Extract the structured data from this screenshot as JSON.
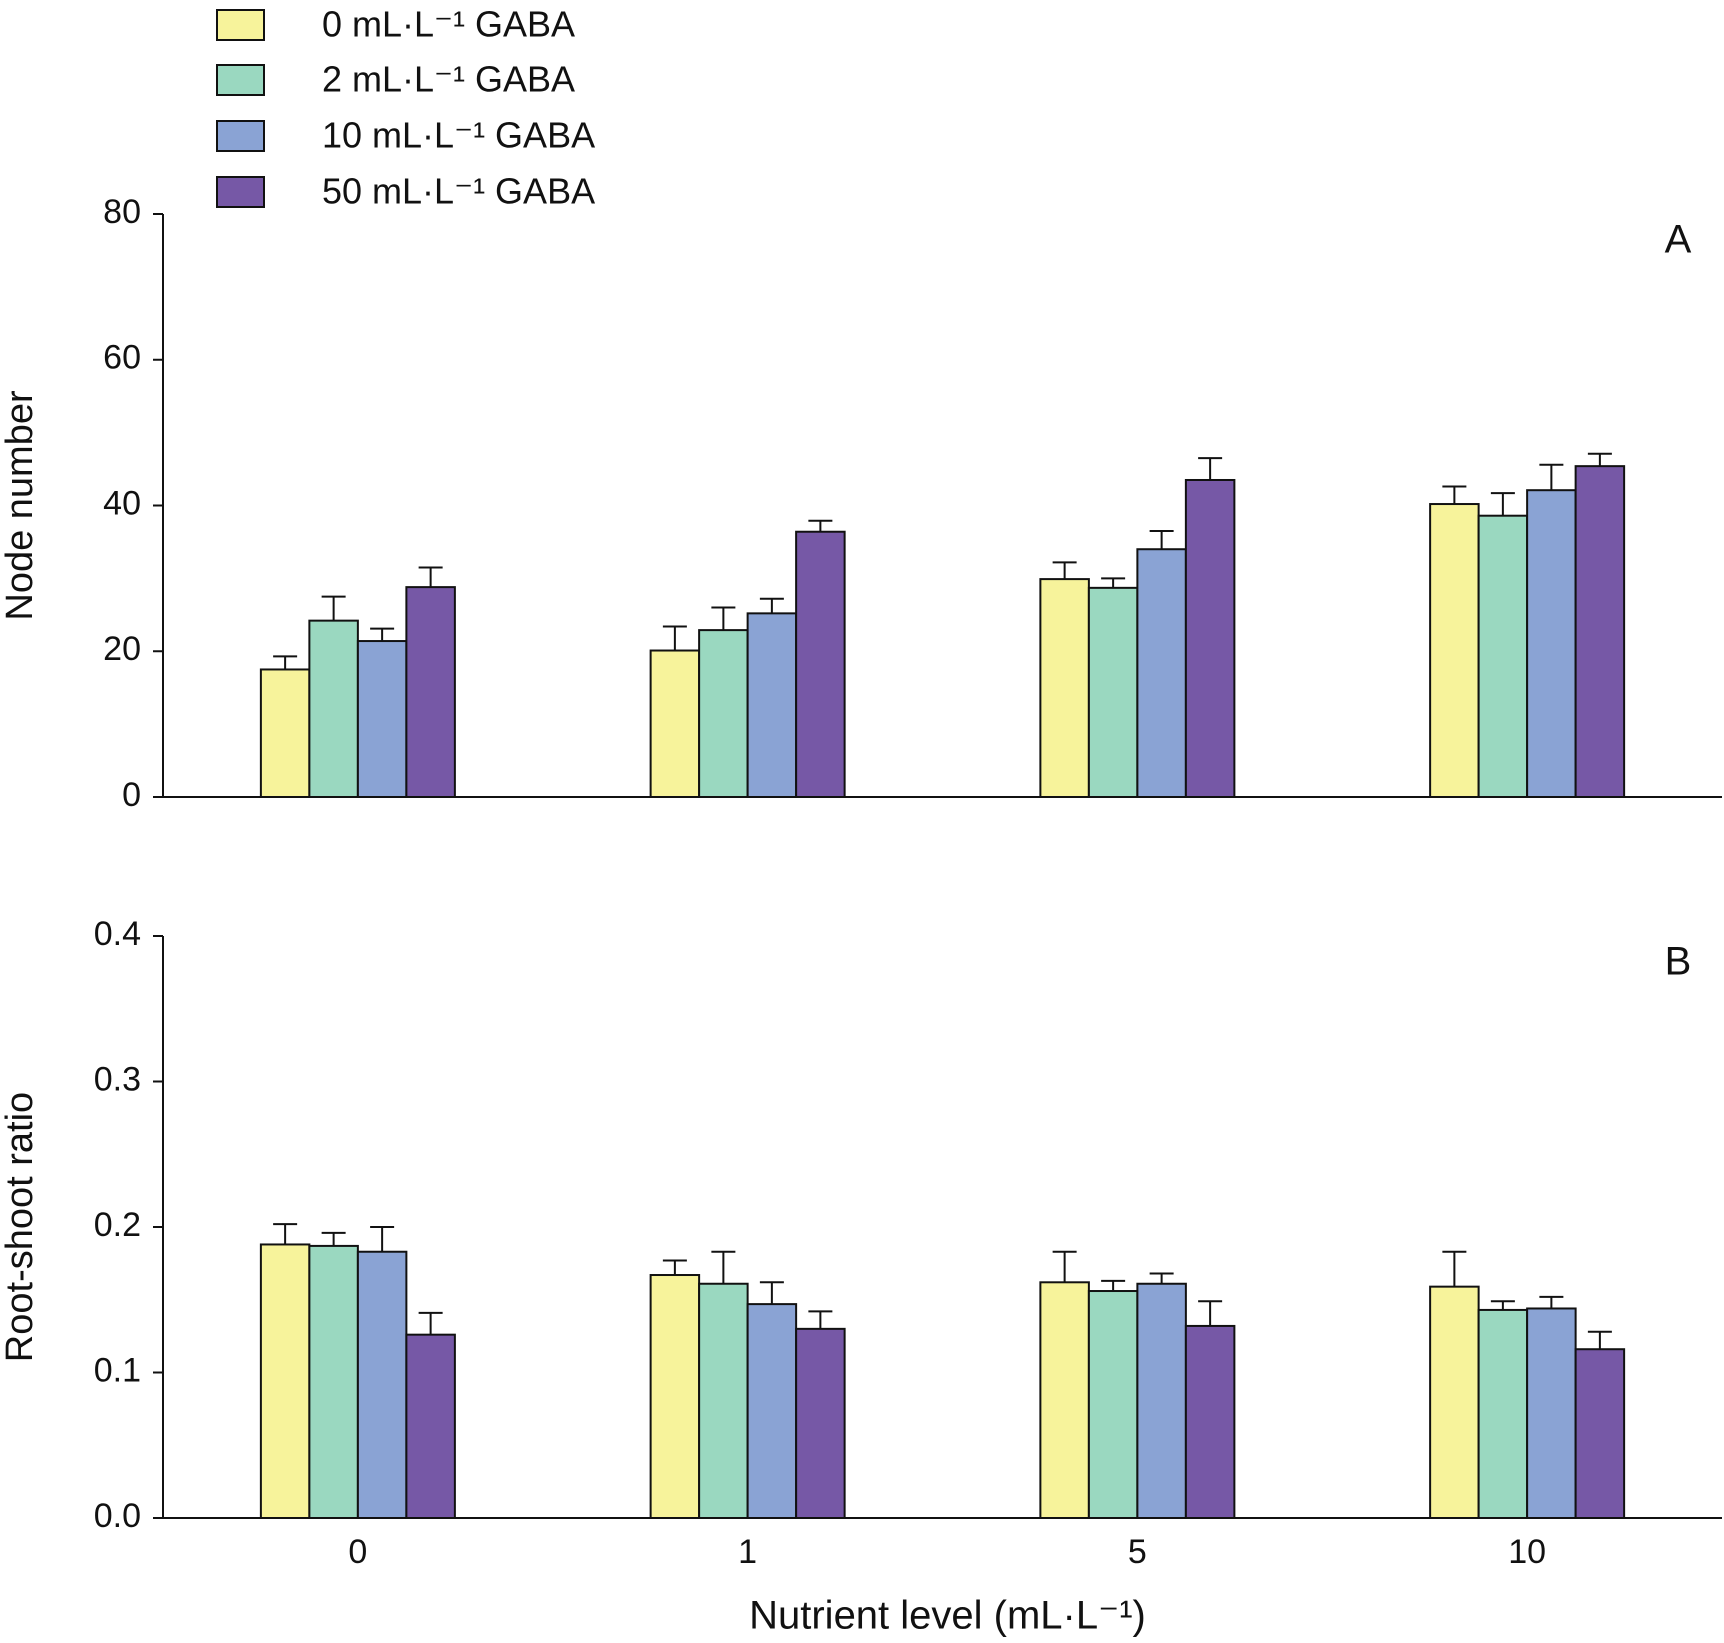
{
  "chart_data": [
    {
      "type": "bar",
      "panel_label": "A",
      "ylabel": "Node number",
      "categories": [
        null,
        null,
        null,
        null
      ],
      "series": [
        {
          "name": "0 mL·L⁻¹ GABA",
          "color": "#f7f39b",
          "values": [
            17.5,
            20.1,
            29.9,
            40.2
          ],
          "errors": [
            1.8,
            3.3,
            2.3,
            2.4
          ]
        },
        {
          "name": "2 mL·L⁻¹ GABA",
          "color": "#9ad8c0",
          "values": [
            24.2,
            22.9,
            28.7,
            38.6
          ],
          "errors": [
            3.3,
            3.1,
            1.3,
            3.1
          ]
        },
        {
          "name": "10 mL·L⁻¹ GABA",
          "color": "#8aa3d4",
          "values": [
            21.4,
            25.2,
            34.0,
            42.1
          ],
          "errors": [
            1.7,
            2.0,
            2.5,
            3.5
          ]
        },
        {
          "name": "50 mL·L⁻¹ GABA",
          "color": "#7658a6",
          "values": [
            28.8,
            36.4,
            43.5,
            45.4
          ],
          "errors": [
            2.7,
            1.5,
            3.0,
            1.7
          ]
        }
      ],
      "ylim": [
        0,
        80
      ],
      "yticks": [
        0,
        20,
        40,
        60,
        80
      ]
    },
    {
      "type": "bar",
      "panel_label": "B",
      "ylabel": "Root-shoot ratio",
      "xlabel": "Nutrient level (mL·L⁻¹)",
      "categories": [
        "0",
        "1",
        "5",
        "10"
      ],
      "series": [
        {
          "color": "#f7f39b",
          "values": [
            0.188,
            0.167,
            0.162,
            0.159
          ],
          "errors": [
            0.014,
            0.01,
            0.021,
            0.024
          ]
        },
        {
          "color": "#9ad8c0",
          "values": [
            0.187,
            0.161,
            0.156,
            0.143
          ],
          "errors": [
            0.009,
            0.022,
            0.007,
            0.006
          ]
        },
        {
          "color": "#8aa3d4",
          "values": [
            0.183,
            0.147,
            0.161,
            0.144
          ],
          "errors": [
            0.017,
            0.015,
            0.007,
            0.008
          ]
        },
        {
          "color": "#7658a6",
          "values": [
            0.126,
            0.13,
            0.132,
            0.116
          ],
          "errors": [
            0.015,
            0.012,
            0.017,
            0.012
          ]
        }
      ],
      "ylim": [
        0,
        0.4
      ],
      "yticks": [
        {
          "value": 0,
          "label": "0.0"
        },
        0.1,
        0.2,
        0.3,
        0.4
      ]
    }
  ]
}
